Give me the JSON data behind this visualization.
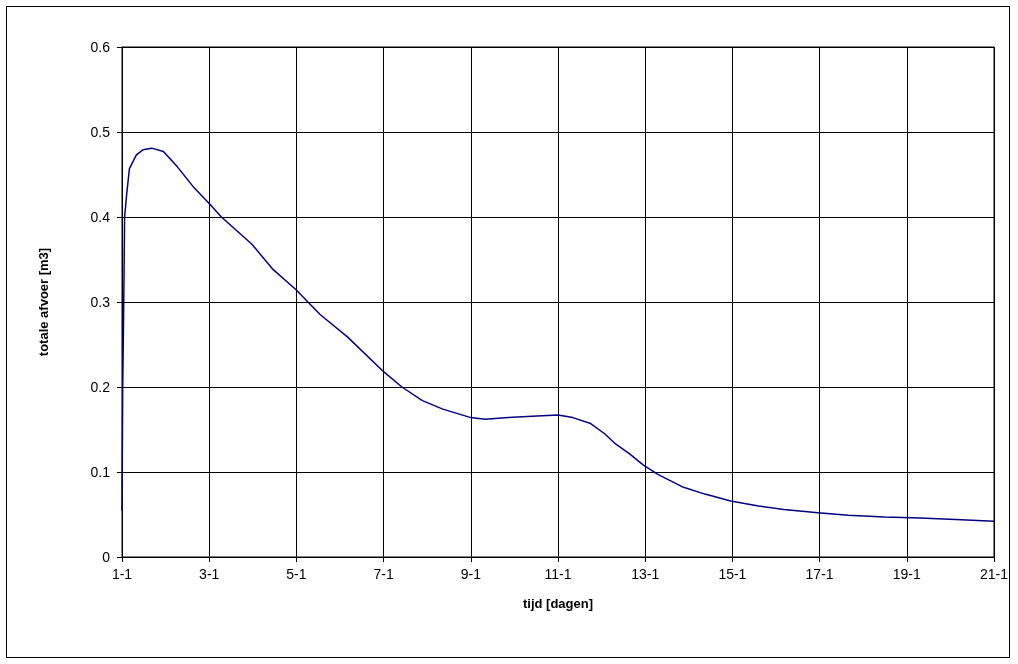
{
  "chart_data": {
    "type": "line",
    "xlabel": "tijd [dagen]",
    "ylabel": "totale afvoer [m3]",
    "series": [
      {
        "color": "#000080",
        "x": [
          "--01-01T00:00",
          "--01-01T00:23",
          "--01-01T00:58",
          "--01-01T01:26",
          "--01-01T02:38",
          "--01-01T04:05",
          "--01-01T07:55",
          "--01-01T11:31",
          "--01-01T16:19",
          "--01-01T22:48",
          "--01-02T06:29",
          "--01-02T15:50",
          "--01-03T00:00",
          "--01-03T06:43",
          "--01-03T23:31",
          "--01-04T10:48",
          "--01-04T23:31",
          "--01-05T13:12",
          "--01-06T04:05",
          "--01-07T00:00",
          "--01-07T10:05",
          "--01-07T21:22",
          "--01-08T08:38",
          "--01-09T00:00",
          "--01-09T07:55",
          "--01-09T20:38",
          "--01-10T12:29",
          "--01-11T00:00",
          "--01-11T08:10",
          "--01-11T18:00",
          "--01-12T01:41",
          "--01-12T07:41",
          "--01-12T15:36",
          "--01-12T23:02",
          "--01-13T07:12",
          "--01-13T21:07",
          "--01-14T08:53",
          "--01-14T23:02",
          "--01-15T14:24",
          "--01-16T04:19",
          "--01-16T23:02",
          "--01-17T15:50",
          "--01-18T11:46",
          "--01-19T07:12",
          "--01-20T02:53",
          "--01-21T00:00"
        ],
        "values": [
          0.055,
          0.198,
          0.3,
          0.4,
          0.428,
          0.457,
          0.473,
          0.479,
          0.481,
          0.477,
          0.459,
          0.434,
          0.416,
          0.4,
          0.368,
          0.339,
          0.315,
          0.285,
          0.259,
          0.218,
          0.2,
          0.184,
          0.174,
          0.164,
          0.162,
          0.164,
          0.166,
          0.167,
          0.164,
          0.157,
          0.145,
          0.133,
          0.121,
          0.108,
          0.097,
          0.082,
          0.074,
          0.066,
          0.06,
          0.056,
          0.052,
          0.049,
          0.047,
          0.046,
          0.044,
          0.042
        ]
      }
    ],
    "xlim": [
      "--01-01",
      "--01-21"
    ],
    "xticks": [
      {
        "value": "--01-01",
        "label": "1-1"
      },
      {
        "value": "--01-03",
        "label": "3-1"
      },
      {
        "value": "--01-05",
        "label": "5-1"
      },
      {
        "value": "--01-07",
        "label": "7-1"
      },
      {
        "value": "--01-09",
        "label": "9-1"
      },
      {
        "value": "--01-11",
        "label": "11-1"
      },
      {
        "value": "--01-13",
        "label": "13-1"
      },
      {
        "value": "--01-15",
        "label": "15-1"
      },
      {
        "value": "--01-17",
        "label": "17-1"
      },
      {
        "value": "--01-19",
        "label": "19-1"
      },
      {
        "value": "--01-21",
        "label": "21-1"
      }
    ],
    "ylim": [
      0,
      0.6
    ],
    "yticks": [
      0,
      0.1,
      0.2,
      0.3,
      0.4,
      0.5,
      0.6
    ],
    "grid": true,
    "marker": "none",
    "line_style": "solid"
  }
}
